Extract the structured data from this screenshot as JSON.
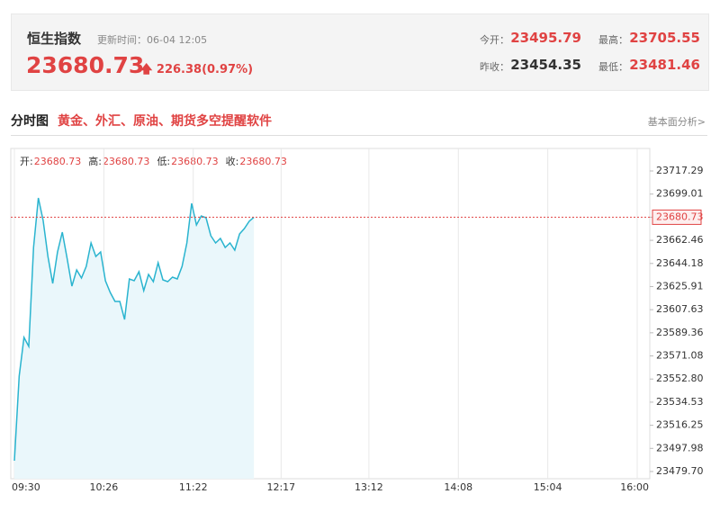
{
  "header": {
    "name": "恒生指数",
    "update_label": "更新时间：",
    "update_time": "06-04 12:05",
    "price": 23680.73,
    "change": "226.38(0.97%)",
    "stats": [
      {
        "label": "今开：",
        "value": 23495.79,
        "color": "#e04343"
      },
      {
        "label": "最高：",
        "value": 23705.55,
        "color": "#e04343"
      },
      {
        "label": "昨收：",
        "value": 23454.35,
        "color": "#333333"
      },
      {
        "label": "最低：",
        "value": 23481.46,
        "color": "#e04343"
      }
    ]
  },
  "section": {
    "title": "分时图",
    "promo": "黄金、外汇、原油、期货多空提醒软件",
    "link": "基本面分析>"
  },
  "chart_data": {
    "type": "line",
    "info": [
      {
        "label": "开:",
        "value": 23680.73
      },
      {
        "label": "高:",
        "value": 23680.73
      },
      {
        "label": "低:",
        "value": 23680.73
      },
      {
        "label": "收:",
        "value": 23680.73
      }
    ],
    "x": [
      "09:30",
      "09:33",
      "09:36",
      "09:39",
      "09:42",
      "09:45",
      "09:48",
      "09:51",
      "09:54",
      "09:57",
      "10:00",
      "10:03",
      "10:06",
      "10:09",
      "10:12",
      "10:15",
      "10:18",
      "10:21",
      "10:24",
      "10:27",
      "10:30",
      "10:33",
      "10:36",
      "10:39",
      "10:42",
      "10:45",
      "10:48",
      "10:51",
      "10:54",
      "10:57",
      "11:00",
      "11:03",
      "11:06",
      "11:09",
      "11:12",
      "11:15",
      "11:18",
      "11:21",
      "11:24",
      "11:27",
      "11:30",
      "11:33",
      "11:36",
      "11:39",
      "11:42",
      "11:45",
      "11:48",
      "11:51",
      "11:54",
      "11:57",
      "12:00"
    ],
    "series": [
      {
        "name": "恒生指数",
        "color": "#2ab4cf",
        "area_color": "#eaf7fb",
        "values": [
          23488.24,
          23555.11,
          23585.7,
          23578.58,
          23656.83,
          23695.95,
          23678.17,
          23649.72,
          23628.37,
          23653.27,
          23668.92,
          23648.29,
          23626.24,
          23639.05,
          23632.64,
          23641.89,
          23660.39,
          23649.72,
          23653.27,
          23630.51,
          23621.26,
          23614.15,
          23614.15,
          23599.92,
          23631.93,
          23630.51,
          23637.62,
          23622.68,
          23635.49,
          23629.8,
          23644.74,
          23631.22,
          23629.8,
          23633.35,
          23631.93,
          23641.89,
          23660.39,
          23691.69,
          23674.61,
          23681.72,
          23680.3,
          23666.08,
          23660.39,
          23663.95,
          23656.83,
          23660.39,
          23654.7,
          23667.5,
          23671.77,
          23677.46,
          23680.73
        ]
      }
    ],
    "xlim": [
      "09:30",
      "16:00"
    ],
    "xticks": [
      "09:30",
      "10:26",
      "11:22",
      "12:17",
      "13:12",
      "14:08",
      "15:04",
      "16:00"
    ],
    "ylim": [
      23479.7,
      23717.29
    ],
    "yticks": [
      23717.29,
      23699.01,
      23680.73,
      23662.46,
      23644.18,
      23625.91,
      23607.63,
      23589.36,
      23571.08,
      {
        "value": 23552.8,
        "label": "23552.80"
      },
      23534.53,
      23516.25,
      23497.98,
      {
        "value": 23479.7,
        "label": "23479.70"
      }
    ],
    "grid": "x",
    "price_line_color": "#e04343"
  }
}
